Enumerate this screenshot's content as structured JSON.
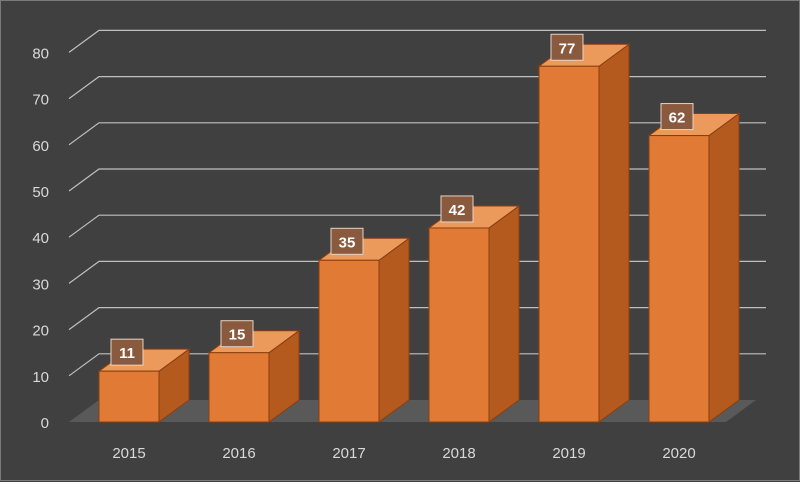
{
  "chart_data": {
    "type": "bar",
    "categories": [
      "2015",
      "2016",
      "2017",
      "2018",
      "2019",
      "2020"
    ],
    "values": [
      11,
      15,
      35,
      42,
      77,
      62
    ],
    "y_ticks": [
      "0",
      "10",
      "20",
      "30",
      "40",
      "50",
      "60",
      "70",
      "80"
    ],
    "title": "",
    "xlabel": "",
    "ylabel": "",
    "ylim": [
      0,
      80
    ],
    "grid": true,
    "legend": "none",
    "style": "3d-column",
    "colors": {
      "background": "#404040",
      "bar_front": "#e07a34",
      "bar_side": "#b55a1f",
      "bar_top": "#ec9a5c",
      "bar_edge": "#8a3e10",
      "gridline": "#bfbfbf",
      "floor": "#595959",
      "label_box": "#8a5a3e"
    }
  }
}
